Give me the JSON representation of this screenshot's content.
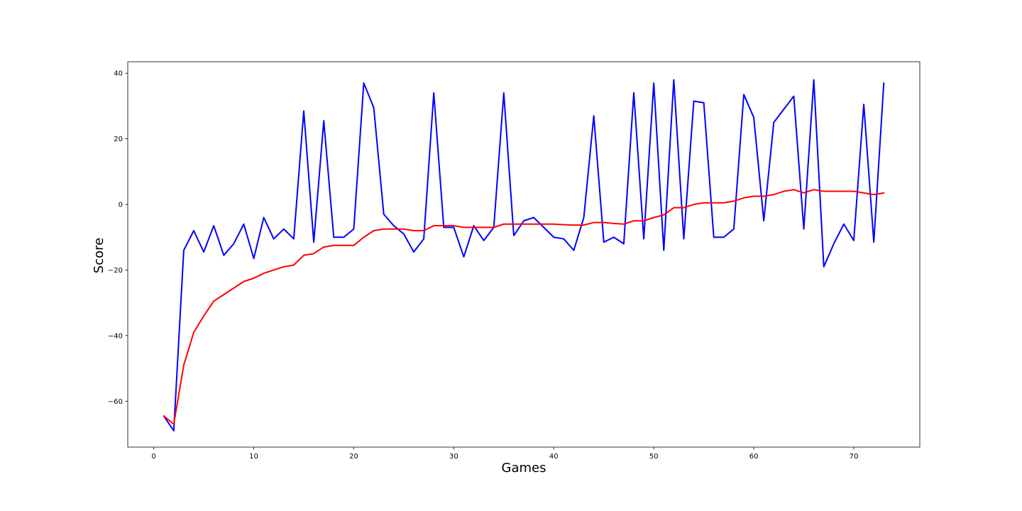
{
  "chart_data": {
    "type": "line",
    "title": "",
    "xlabel": "Games",
    "ylabel": "Score",
    "xlim": [
      -2.6,
      76.6
    ],
    "ylim": [
      -74,
      43.5
    ],
    "xticks": [
      0,
      10,
      20,
      30,
      40,
      50,
      60,
      70
    ],
    "yticks": [
      40,
      20,
      0,
      -20,
      -40,
      -60
    ],
    "ytick_labels": [
      "40",
      "20",
      "0",
      "−20",
      "−40",
      "−60"
    ],
    "grid": false,
    "x": [
      1,
      2,
      3,
      4,
      5,
      6,
      7,
      8,
      9,
      10,
      11,
      12,
      13,
      14,
      15,
      16,
      17,
      18,
      19,
      20,
      21,
      22,
      23,
      24,
      25,
      26,
      27,
      28,
      29,
      30,
      31,
      32,
      33,
      34,
      35,
      36,
      37,
      38,
      39,
      40,
      41,
      42,
      43,
      44,
      45,
      46,
      47,
      48,
      49,
      50,
      51,
      52,
      53,
      54,
      55,
      56,
      57,
      58,
      59,
      60,
      61,
      62,
      63,
      64,
      65,
      66,
      67,
      68,
      69,
      70,
      71,
      72,
      73
    ],
    "series": [
      {
        "color": "#0000ff",
        "values": [
          -64.5,
          -69,
          -14,
          -8,
          -14.5,
          -6.5,
          -15.5,
          -12,
          -6,
          -16.5,
          -4,
          -10.5,
          -7.5,
          -10.5,
          28.5,
          -11.5,
          25.5,
          -10,
          -10,
          -7.5,
          37,
          29.5,
          -3,
          -6.5,
          -9,
          -14.5,
          -10.5,
          34,
          -7,
          -7,
          -16,
          -6.5,
          -11,
          -7,
          34,
          -9.5,
          -5,
          -4,
          -7,
          -10,
          -10.5,
          -14,
          -4,
          27,
          -11.5,
          -10,
          -12,
          34,
          -10.5,
          37,
          -14,
          38,
          -10.5,
          31.5,
          31,
          -10,
          -10,
          -7.5,
          33.5,
          26.5,
          -5,
          25,
          29,
          33,
          -7.5,
          38,
          -19,
          -12,
          -6,
          -11,
          30.5,
          -11.5,
          37
        ]
      },
      {
        "color": "#ff0000",
        "values": [
          -64.5,
          -67,
          -49,
          -39,
          -34,
          -29.5,
          -27.5,
          -25.5,
          -23.5,
          -22.5,
          -21,
          -20,
          -19,
          -18.5,
          -15.5,
          -15,
          -13,
          -12.5,
          -12.5,
          -12.5,
          -10,
          -8,
          -7.5,
          -7.5,
          -7.5,
          -8,
          -8,
          -6.5,
          -6.5,
          -6.5,
          -7,
          -7,
          -7,
          -7,
          -6,
          -6,
          -6,
          -6,
          -6,
          -6,
          -6.2,
          -6.3,
          -6.3,
          -5.5,
          -5.5,
          -5.8,
          -6,
          -5,
          -5,
          -4,
          -3.2,
          -1,
          -1,
          0,
          0.5,
          0.5,
          0.5,
          1,
          2,
          2.5,
          2.5,
          3,
          4,
          4.5,
          3.5,
          4.5,
          4,
          4,
          4,
          4,
          3.5,
          3,
          3.5
        ]
      }
    ]
  }
}
